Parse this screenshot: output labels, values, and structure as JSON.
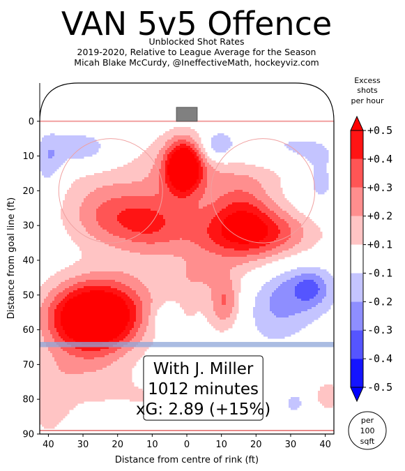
{
  "chart_data": {
    "type": "heatmap",
    "title": "VAN 5v5 Offence",
    "subtitle_lines": [
      "Unblocked Shot Rates",
      "2019-2020, Relative to League Average for the Season",
      "Micah Blake McCurdy, @IneffectiveMath, hockeyviz.com"
    ],
    "xlabel": "Distance from centre of rink (ft)",
    "ylabel": "Distance from goal line (ft)",
    "xlim": [
      -42.5,
      42.5
    ],
    "ylim": [
      90,
      -11
    ],
    "x_ticks": [
      {
        "value": -40,
        "label": "40"
      },
      {
        "value": -30,
        "label": "30"
      },
      {
        "value": -20,
        "label": "20"
      },
      {
        "value": -10,
        "label": "10"
      },
      {
        "value": 0,
        "label": "0"
      },
      {
        "value": 10,
        "label": "10"
      },
      {
        "value": 20,
        "label": "20"
      },
      {
        "value": 30,
        "label": "30"
      },
      {
        "value": 40,
        "label": "40"
      }
    ],
    "y_ticks": [
      0,
      10,
      20,
      30,
      40,
      50,
      60,
      70,
      80,
      90
    ],
    "colorbar": {
      "title_lines": [
        "Excess",
        "shots",
        "per hour"
      ],
      "levels": [
        -0.5,
        -0.4,
        -0.3,
        -0.2,
        -0.1,
        0.1,
        0.2,
        0.3,
        0.4,
        0.5
      ],
      "level_labels": [
        "-0.5",
        "-0.4",
        "-0.3",
        "-0.2",
        "-0.1",
        "+0.1",
        "+0.2",
        "+0.3",
        "+0.4",
        "+0.5"
      ],
      "colors": [
        "#1414ff",
        "#5555ff",
        "#8e8eff",
        "#c4c4ff",
        "#ffffff",
        "#ffc4c4",
        "#ff8e8e",
        "#ff5555",
        "#ff1414"
      ],
      "end_neg": "#0000ff",
      "end_pos": "#ff0000",
      "unit_lines": [
        "per",
        "100",
        "sqft"
      ]
    },
    "annotation_lines": [
      "With J. Miller",
      "1012 minutes",
      "xG: 2.89 (+15%)"
    ],
    "blobs": [
      {
        "x": -27,
        "y": 57,
        "sx": 9,
        "sy": 6.5,
        "v": 0.78
      },
      {
        "x": -22,
        "y": 50,
        "sx": 12,
        "sy": 7,
        "v": 0.15
      },
      {
        "x": -30,
        "y": 72,
        "sx": 10,
        "sy": 7,
        "v": 0.14
      },
      {
        "x": -40,
        "y": 82,
        "sx": 5,
        "sy": 9,
        "v": 0.12
      },
      {
        "x": -5,
        "y": 80,
        "sx": 14,
        "sy": 5,
        "v": 0.1
      },
      {
        "x": -1,
        "y": 13,
        "sx": 3.5,
        "sy": 5,
        "v": 0.62
      },
      {
        "x": -1,
        "y": 16,
        "sx": 8,
        "sy": 9,
        "v": 0.2
      },
      {
        "x": -20,
        "y": 28,
        "sx": 9,
        "sy": 6,
        "v": 0.26
      },
      {
        "x": -10,
        "y": 30,
        "sx": 6,
        "sy": 5,
        "v": 0.16
      },
      {
        "x": -24,
        "y": 18,
        "sx": 12,
        "sy": 10,
        "v": 0.12
      },
      {
        "x": 20,
        "y": 32,
        "sx": 11,
        "sy": 5,
        "v": 0.34
      },
      {
        "x": 16,
        "y": 25,
        "sx": 6,
        "sy": 6,
        "v": 0.24
      },
      {
        "x": 10,
        "y": 35,
        "sx": 14,
        "sy": 7,
        "v": 0.14
      },
      {
        "x": 20,
        "y": 14,
        "sx": 12,
        "sy": 5,
        "v": 0.12
      },
      {
        "x": 8,
        "y": 36,
        "sx": 22,
        "sy": 13,
        "v": 0.06
      },
      {
        "x": 11,
        "y": 52,
        "sx": 3,
        "sy": 5,
        "v": 0.24
      },
      {
        "x": 12,
        "y": 56,
        "sx": 6,
        "sy": 7,
        "v": 0.08
      },
      {
        "x": 3,
        "y": 45,
        "sx": 5,
        "sy": 3,
        "v": 0.1
      },
      {
        "x": 41,
        "y": 79,
        "sx": 3,
        "sy": 3,
        "v": 0.18
      },
      {
        "x": 0,
        "y": 55,
        "sx": 3,
        "sy": 4,
        "v": 0.06
      },
      {
        "x": -30,
        "y": 8,
        "sx": 7,
        "sy": 4,
        "v": -0.22
      },
      {
        "x": -40,
        "y": 12,
        "sx": 3,
        "sy": 6,
        "v": -0.18
      },
      {
        "x": 9,
        "y": 7,
        "sx": 3,
        "sy": 3,
        "v": -0.22
      },
      {
        "x": 27,
        "y": 8,
        "sx": 13,
        "sy": 4,
        "v": -0.14
      },
      {
        "x": 38,
        "y": 18,
        "sx": 5,
        "sy": 6,
        "v": -0.15
      },
      {
        "x": 33,
        "y": 48,
        "sx": 8,
        "sy": 6,
        "v": -0.24
      },
      {
        "x": 36,
        "y": 48,
        "sx": 3,
        "sy": 3,
        "v": -0.14
      },
      {
        "x": 24,
        "y": 56,
        "sx": 8,
        "sy": 7,
        "v": -0.16
      },
      {
        "x": -6,
        "y": 57,
        "sx": 3,
        "sy": 3,
        "v": -0.14
      },
      {
        "x": 31,
        "y": 81,
        "sx": 2,
        "sy": 2,
        "v": -0.16
      },
      {
        "x": 10,
        "y": 82,
        "sx": 5,
        "sy": 2,
        "v": -0.08
      }
    ]
  }
}
